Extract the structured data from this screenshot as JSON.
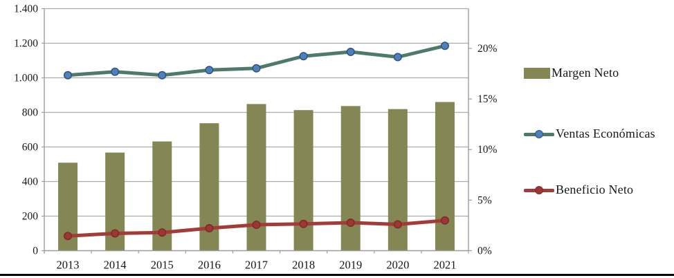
{
  "figure": {
    "background": "#ffffff",
    "bottom_rule_color": "#000000"
  },
  "chart_data": {
    "type": "bar+line combo",
    "title": "",
    "categories": [
      "2013",
      "2014",
      "2015",
      "2016",
      "2017",
      "2018",
      "2019",
      "2020",
      "2021"
    ],
    "series": [
      {
        "name": "Margen Neto",
        "type": "bar",
        "axis": "right",
        "unit": "%",
        "color": "#848754",
        "values": [
          8.7,
          9.7,
          10.8,
          12.6,
          14.5,
          13.9,
          14.3,
          14.0,
          14.7
        ]
      },
      {
        "name": "Ventas Económicas",
        "type": "line",
        "axis": "left",
        "color": "#4E7B67",
        "marker_fill": "#4E80BC",
        "marker_edge": "#2E5280",
        "values": [
          1015,
          1035,
          1015,
          1045,
          1055,
          1125,
          1150,
          1120,
          1185
        ]
      },
      {
        "name": "Beneficio Neto",
        "type": "line",
        "axis": "left",
        "color": "#A33B38",
        "marker_fill": "#9E3734",
        "marker_edge": "#7C2A27",
        "values": [
          85,
          100,
          105,
          130,
          150,
          155,
          162,
          152,
          175
        ]
      }
    ],
    "left_axis": {
      "min": 0,
      "max": 1400,
      "step": 200,
      "tick_labels": [
        "0",
        "200",
        "400",
        "600",
        "800",
        "1.000",
        "1.200",
        "1.400"
      ]
    },
    "right_axis": {
      "min": 0,
      "max": 23.93,
      "tick_values": [
        0,
        5,
        10,
        15,
        20
      ],
      "tick_labels": [
        "0%",
        "5%",
        "10%",
        "15%",
        "20%"
      ]
    },
    "grid": true,
    "gridline_color": "#ABABAB",
    "axis_line_color": "#9C9C9C",
    "tick_text_color": "#161616",
    "legend_position": "right"
  }
}
